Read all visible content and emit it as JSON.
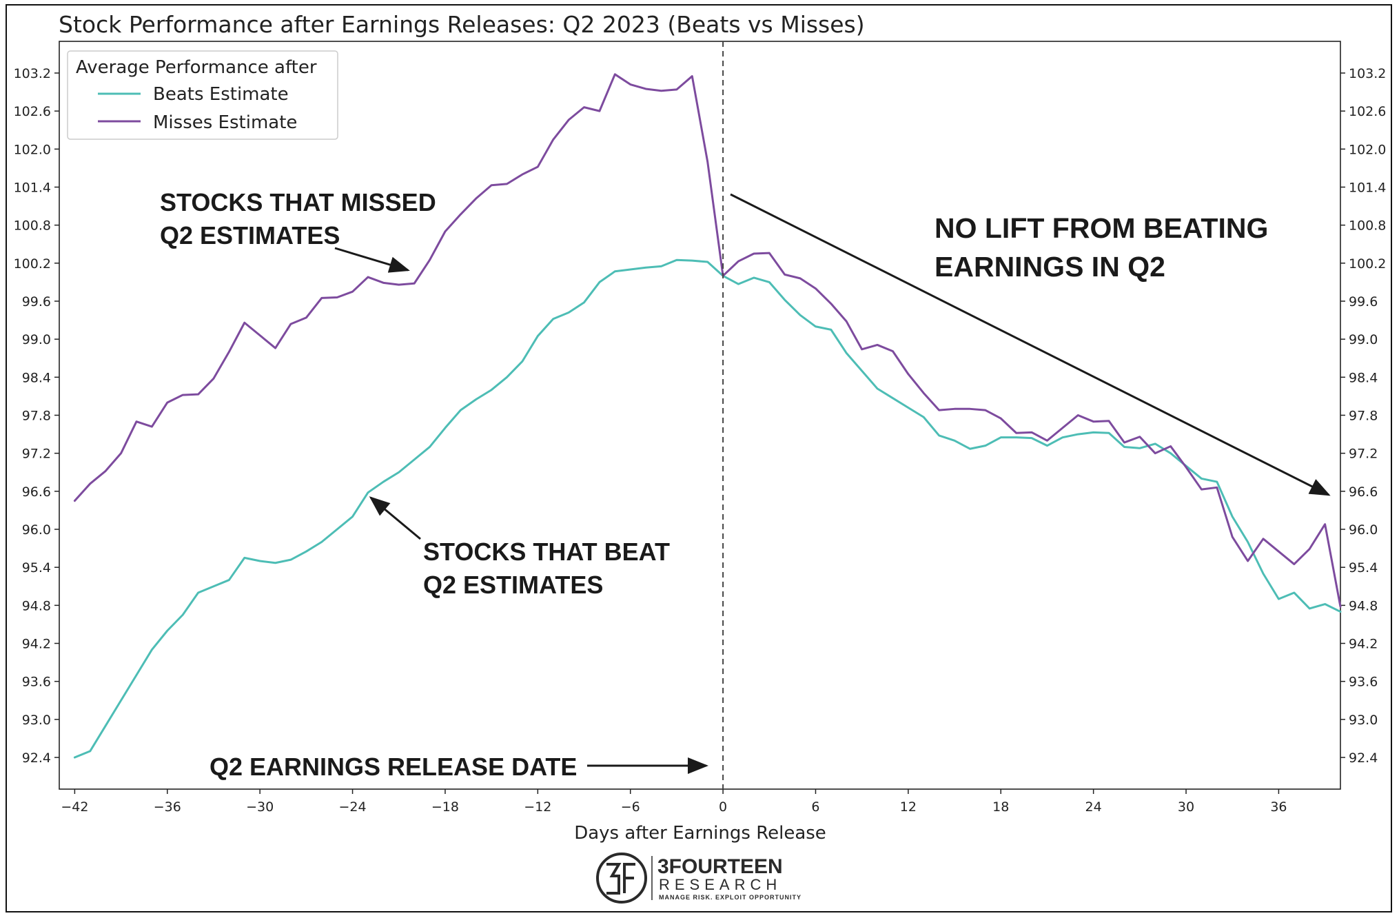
{
  "chart_data": {
    "type": "line",
    "title": "Stock Performance after Earnings Releases: Q2 2023 (Beats vs Misses)",
    "xlabel": "Days after Earnings Release",
    "ylabel": "",
    "xlim": [
      -43,
      40
    ],
    "ylim": [
      91.9,
      103.7
    ],
    "x_ticks": [
      -42,
      -36,
      -30,
      -24,
      -18,
      -12,
      -6,
      0,
      6,
      12,
      18,
      24,
      30,
      36
    ],
    "x_tick_labels": [
      "−42",
      "−36",
      "−30",
      "−24",
      "−18",
      "−12",
      "−6",
      "0",
      "6",
      "12",
      "18",
      "24",
      "30",
      "36"
    ],
    "y_ticks": [
      92.4,
      93.0,
      93.6,
      94.2,
      94.8,
      95.4,
      96.0,
      96.6,
      97.2,
      97.8,
      98.4,
      99.0,
      99.6,
      100.2,
      100.8,
      101.4,
      102.0,
      102.6,
      103.2
    ],
    "y_tick_labels": [
      "92.4",
      "93.0",
      "93.6",
      "94.2",
      "94.8",
      "95.4",
      "96.0",
      "96.6",
      "97.2",
      "97.8",
      "98.4",
      "99.0",
      "99.6",
      "100.2",
      "100.8",
      "101.4",
      "102.0",
      "102.6",
      "103.2"
    ],
    "grid": false,
    "legend": {
      "title": "Average Performance after",
      "placement": "top-left"
    },
    "vline": {
      "x": 0,
      "style": "dashed"
    },
    "x": [
      -42,
      -41,
      -40,
      -39,
      -38,
      -37,
      -36,
      -35,
      -34,
      -33,
      -32,
      -31,
      -30,
      -29,
      -28,
      -27,
      -26,
      -25,
      -24,
      -23,
      -22,
      -21,
      -20,
      -19,
      -18,
      -17,
      -16,
      -15,
      -14,
      -13,
      -12,
      -11,
      -10,
      -9,
      -8,
      -7,
      -6,
      -5,
      -4,
      -3,
      -2,
      -1,
      0,
      1,
      2,
      3,
      4,
      5,
      6,
      7,
      8,
      9,
      10,
      11,
      12,
      13,
      14,
      15,
      16,
      17,
      18,
      19,
      20,
      21,
      22,
      23,
      24,
      25,
      26,
      27,
      28,
      29,
      30,
      31,
      32,
      33,
      34,
      35,
      36,
      37,
      38,
      39,
      40
    ],
    "series": [
      {
        "name": "Beats Estimate",
        "color": "#4dbdb5",
        "values": [
          92.4,
          92.5,
          92.9,
          93.3,
          93.7,
          94.1,
          94.4,
          94.65,
          95.0,
          95.1,
          95.2,
          95.55,
          95.5,
          95.47,
          95.52,
          95.65,
          95.8,
          96.0,
          96.2,
          96.58,
          96.75,
          96.9,
          97.1,
          97.3,
          97.6,
          97.88,
          98.05,
          98.2,
          98.4,
          98.65,
          99.05,
          99.32,
          99.42,
          99.58,
          99.9,
          100.07,
          100.1,
          100.13,
          100.15,
          100.25,
          100.24,
          100.22,
          100.0,
          99.87,
          99.97,
          99.9,
          99.62,
          99.38,
          99.2,
          99.15,
          98.78,
          98.5,
          98.22,
          98.07,
          97.92,
          97.77,
          97.48,
          97.4,
          97.27,
          97.32,
          97.45,
          97.45,
          97.44,
          97.32,
          97.45,
          97.5,
          97.53,
          97.52,
          97.3,
          97.28,
          97.35,
          97.2,
          97.0,
          96.8,
          96.75,
          96.2,
          95.8,
          95.3,
          94.9,
          95.0,
          94.75,
          94.82,
          94.7
        ]
      },
      {
        "name": "Misses Estimate",
        "color": "#7d4b9e",
        "values": [
          96.45,
          96.72,
          96.92,
          97.2,
          97.7,
          97.62,
          98.0,
          98.12,
          98.13,
          98.38,
          98.8,
          99.26,
          99.06,
          98.86,
          99.24,
          99.34,
          99.65,
          99.66,
          99.75,
          99.98,
          99.89,
          99.86,
          99.88,
          100.25,
          100.7,
          100.97,
          101.22,
          101.43,
          101.45,
          101.6,
          101.72,
          102.15,
          102.46,
          102.66,
          102.6,
          103.18,
          103.02,
          102.95,
          102.92,
          102.94,
          103.15,
          101.8,
          100.0,
          100.23,
          100.35,
          100.36,
          100.02,
          99.96,
          99.8,
          99.56,
          99.28,
          98.84,
          98.91,
          98.81,
          98.45,
          98.15,
          97.88,
          97.9,
          97.9,
          97.88,
          97.75,
          97.52,
          97.53,
          97.4,
          97.6,
          97.8,
          97.7,
          97.71,
          97.37,
          97.46,
          97.2,
          97.31,
          96.98,
          96.63,
          96.66,
          95.88,
          95.5,
          95.85,
          95.65,
          95.45,
          95.69,
          96.08,
          94.78
        ]
      }
    ],
    "annotations": {
      "missed_line1": "STOCKS THAT MISSED",
      "missed_line2": "Q2 ESTIMATES",
      "beat_line1": "STOCKS THAT BEAT",
      "beat_line2": "Q2 ESTIMATES",
      "release_date": "Q2 EARNINGS RELEASE DATE",
      "no_lift_line1": "NO LIFT FROM BEATING",
      "no_lift_line2": "EARNINGS IN Q2"
    }
  },
  "branding": {
    "name": "3FOURTEEN",
    "sub": "RESEARCH",
    "tagline": "MANAGE RISK. EXPLOIT OPPORTUNITY"
  }
}
